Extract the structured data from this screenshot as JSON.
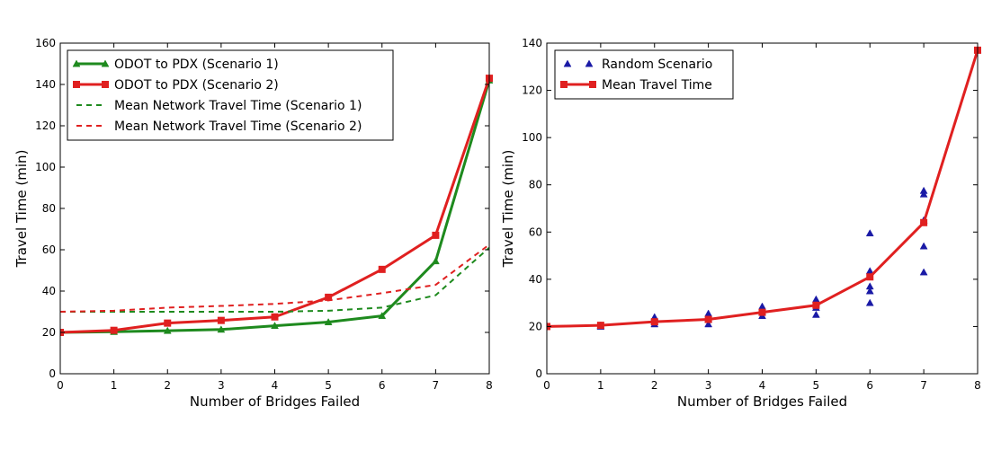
{
  "chart_data": [
    {
      "type": "line",
      "xlabel": "Number of Bridges Failed",
      "ylabel": "Travel Time (min)",
      "xlim": [
        0,
        8
      ],
      "ylim": [
        0,
        160
      ],
      "xticks": [
        0,
        1,
        2,
        3,
        4,
        5,
        6,
        7,
        8
      ],
      "yticks": [
        0,
        20,
        40,
        60,
        80,
        100,
        120,
        140,
        160
      ],
      "grid": false,
      "legend_position": "top-left",
      "series": [
        {
          "name": "ODOT to PDX (Scenario 1)",
          "color": "#1e8a1e",
          "style": "solid",
          "marker": "triangle",
          "x": [
            0,
            1,
            2,
            3,
            4,
            5,
            6,
            7,
            8
          ],
          "y": [
            20,
            20.3,
            20.8,
            21.4,
            23.2,
            25,
            28,
            54.5,
            142
          ]
        },
        {
          "name": "ODOT to PDX (Scenario 2)",
          "color": "#e02020",
          "style": "solid",
          "marker": "square",
          "x": [
            0,
            1,
            2,
            3,
            4,
            5,
            6,
            7,
            8
          ],
          "y": [
            20,
            21,
            24.5,
            25.8,
            27.5,
            37,
            50.5,
            67,
            143
          ]
        },
        {
          "name": "Mean Network Travel Time (Scenario 1)",
          "color": "#1e8a1e",
          "style": "dashed",
          "marker": "none",
          "x": [
            0,
            1,
            2,
            3,
            4,
            5,
            6,
            7,
            8
          ],
          "y": [
            30,
            30,
            30,
            30,
            30,
            30.5,
            32,
            38,
            61
          ]
        },
        {
          "name": "Mean Network Travel Time (Scenario 2)",
          "color": "#e02020",
          "style": "dashed",
          "marker": "none",
          "x": [
            0,
            1,
            2,
            3,
            4,
            5,
            6,
            7,
            8
          ],
          "y": [
            30,
            30.5,
            32,
            32.8,
            33.8,
            35.5,
            39,
            43,
            62.5
          ]
        }
      ]
    },
    {
      "type": "scatter",
      "xlabel": "Number of Bridges Failed",
      "ylabel": "Travel Time (min)",
      "xlim": [
        0,
        8
      ],
      "ylim": [
        0,
        140
      ],
      "xticks": [
        0,
        1,
        2,
        3,
        4,
        5,
        6,
        7,
        8
      ],
      "yticks": [
        0,
        20,
        40,
        60,
        80,
        100,
        120,
        140
      ],
      "grid": false,
      "legend_position": "top-left",
      "series": [
        {
          "name": "Random Scenario",
          "color": "#1a1aa6",
          "style": "none",
          "marker": "triangle",
          "x": [
            0,
            1,
            1,
            2,
            2,
            2,
            3,
            3,
            3,
            4,
            4,
            4,
            5,
            5,
            5,
            5,
            6,
            6,
            6,
            6,
            6,
            7,
            7,
            7,
            7,
            7,
            8
          ],
          "y": [
            20,
            20,
            20.5,
            21,
            22,
            24,
            21,
            23,
            25.5,
            24.5,
            26,
            28.5,
            25,
            28,
            30,
            31.5,
            30,
            35,
            37,
            43.5,
            59.5,
            43,
            54,
            65,
            76,
            77.5,
            137
          ]
        },
        {
          "name": "Mean Travel Time",
          "color": "#e02020",
          "style": "solid",
          "marker": "square",
          "x": [
            0,
            1,
            2,
            3,
            4,
            5,
            6,
            7,
            8
          ],
          "y": [
            20,
            20.5,
            22,
            23,
            26,
            29,
            41,
            64,
            137
          ]
        }
      ]
    }
  ]
}
